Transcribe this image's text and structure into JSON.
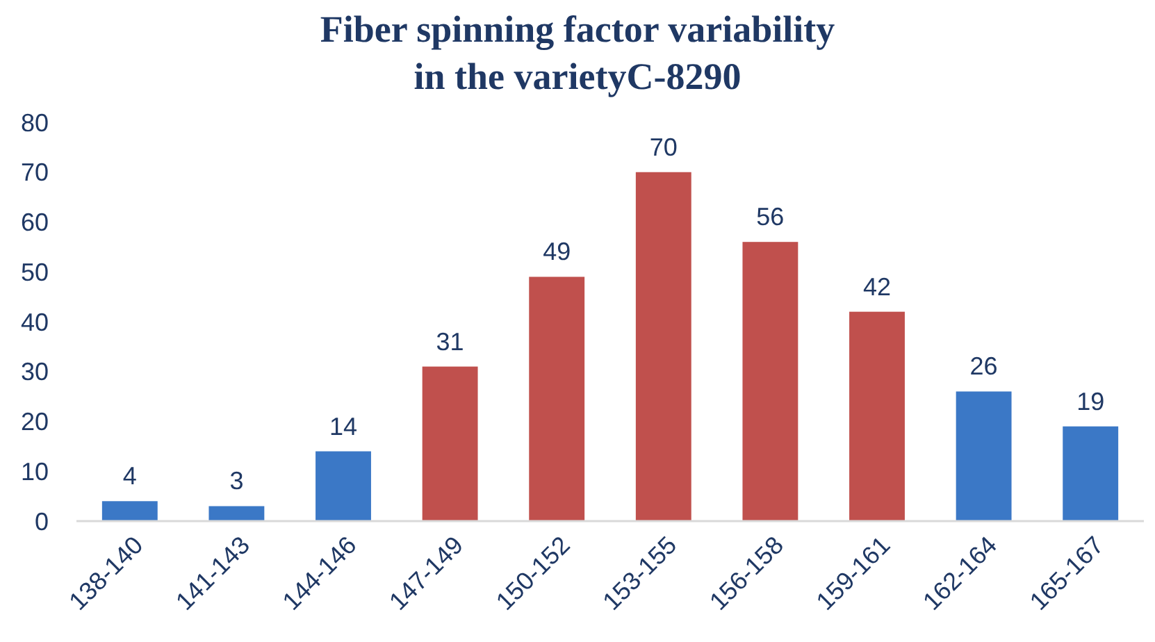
{
  "chart_data": {
    "type": "bar",
    "title": "Fiber spinning factor variability\nin the varietyC-8290",
    "categories": [
      "138-140",
      "141-143",
      "144-146",
      "147-149",
      "150-152",
      "153-155",
      "156-158",
      "159-161",
      "162-164",
      "165-167"
    ],
    "values": [
      4,
      3,
      14,
      31,
      49,
      70,
      56,
      42,
      26,
      19
    ],
    "colors": [
      "#3b78c6",
      "#3b78c6",
      "#3b78c6",
      "#c0504d",
      "#c0504d",
      "#c0504d",
      "#c0504d",
      "#c0504d",
      "#3b78c6",
      "#3b78c6"
    ],
    "ylim": [
      0,
      80
    ],
    "yticks": [
      0,
      10,
      20,
      30,
      40,
      50,
      60,
      70,
      80
    ],
    "grid": false,
    "data_labels": true
  }
}
